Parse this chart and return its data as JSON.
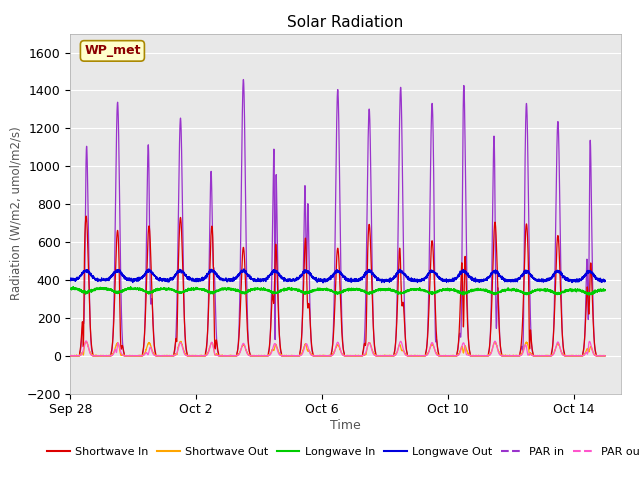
{
  "title": "Solar Radiation",
  "xlabel": "Time",
  "ylabel": "Radiation (W/m2, umol/m2/s)",
  "ylim": [
    -200,
    1700
  ],
  "yticks": [
    -200,
    0,
    200,
    400,
    600,
    800,
    1000,
    1200,
    1400,
    1600
  ],
  "plot_bg_color": "#e8e8e8",
  "total_days": 17.5,
  "series": {
    "shortwave_in": {
      "color": "#dd0000",
      "label": "Shortwave In"
    },
    "shortwave_out": {
      "color": "#ffa500",
      "label": "Shortwave Out"
    },
    "longwave_in": {
      "color": "#00cc00",
      "label": "Longwave In"
    },
    "longwave_out": {
      "color": "#0000dd",
      "label": "Longwave Out"
    },
    "par_in": {
      "color": "#9933cc",
      "label": "PAR in"
    },
    "par_out": {
      "color": "#ff55cc",
      "label": "PAR out"
    }
  },
  "xtick_labels": [
    "Sep 28",
    "Oct 2",
    "Oct 6",
    "Oct 10",
    "Oct 14"
  ],
  "xtick_positions": [
    0,
    4,
    8,
    12,
    16
  ],
  "legend_label": "WP_met",
  "n_days": 17,
  "pts_per_day": 288,
  "seed": 12345
}
